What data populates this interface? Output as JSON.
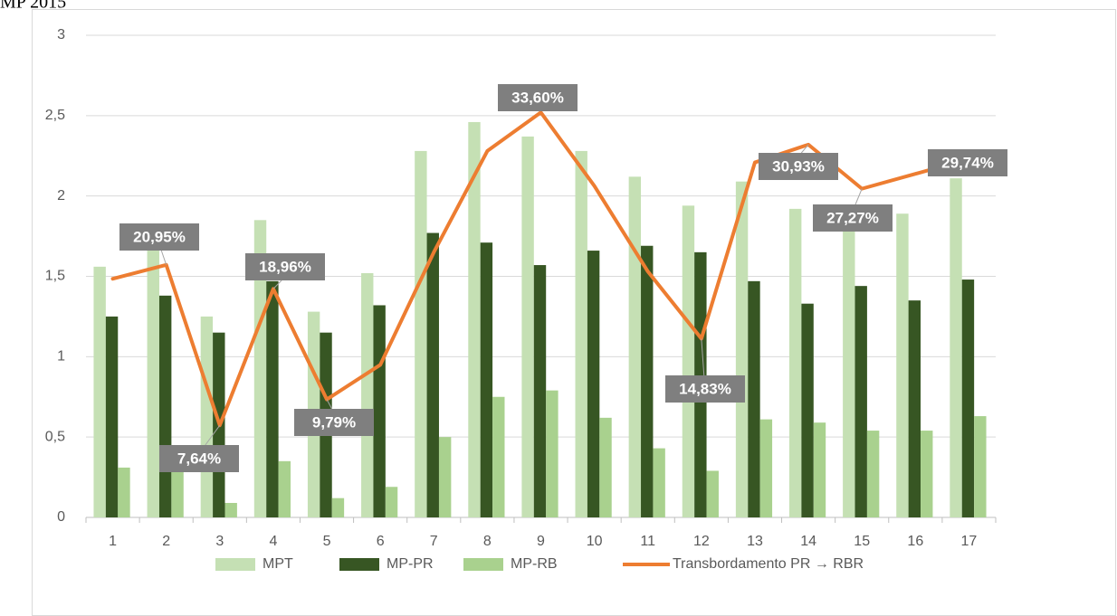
{
  "chart_data": {
    "type": "bar",
    "title": "MP 2015",
    "categories": [
      "1",
      "2",
      "3",
      "4",
      "5",
      "6",
      "7",
      "8",
      "9",
      "10",
      "11",
      "12",
      "13",
      "14",
      "15",
      "16",
      "17"
    ],
    "series": [
      {
        "name": "MPT",
        "color": "#c5e0b4",
        "values": [
          1.56,
          1.68,
          1.25,
          1.85,
          1.28,
          1.52,
          2.28,
          2.46,
          2.37,
          2.28,
          2.12,
          1.94,
          2.09,
          1.92,
          1.8,
          1.89,
          2.11
        ]
      },
      {
        "name": "MP-PR",
        "color": "#375623",
        "values": [
          1.25,
          1.38,
          1.15,
          1.47,
          1.15,
          1.32,
          1.77,
          1.71,
          1.57,
          1.66,
          1.69,
          1.65,
          1.47,
          1.33,
          1.44,
          1.35,
          1.48
        ]
      },
      {
        "name": "MP-RB",
        "color": "#a9d18e",
        "values": [
          0.31,
          0.3,
          0.09,
          0.35,
          0.12,
          0.19,
          0.5,
          0.75,
          0.79,
          0.62,
          0.43,
          0.29,
          0.61,
          0.59,
          0.54,
          0.54,
          0.63
        ]
      },
      {
        "name": "Transbordamento PR → RBR",
        "color": "#ed7d31",
        "type": "line",
        "axis": "y2",
        "values": [
          19.8,
          20.95,
          7.64,
          18.96,
          9.79,
          12.66,
          22.0,
          30.4,
          33.6,
          27.5,
          20.4,
          14.83,
          29.45,
          30.93,
          27.27,
          28.5,
          29.74
        ],
        "value_labels": [
          null,
          "20,95%",
          "7,64%",
          "18,96%",
          "9,79%",
          null,
          null,
          null,
          "33,60%",
          null,
          null,
          "14,83%",
          null,
          "30,93%",
          "27,27%",
          null,
          "29,74%"
        ]
      }
    ],
    "ylim": [
      0,
      3
    ],
    "yticks": [
      0,
      {
        "value": 0.5,
        "label": "0,5"
      },
      1,
      {
        "value": 1.5,
        "label": "1,5"
      },
      2,
      {
        "value": 2.5,
        "label": "2,5"
      },
      3
    ],
    "y2lim": [
      0,
      40
    ],
    "grid": true,
    "legend": "bottom"
  }
}
